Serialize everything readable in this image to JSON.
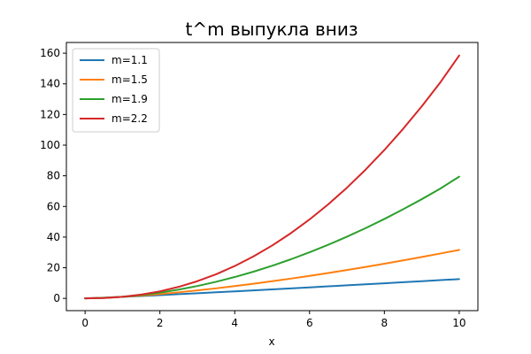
{
  "chart_data": {
    "type": "line",
    "title": "t^m выпукла вниз",
    "xlabel": "x",
    "ylabel": "",
    "xlim": [
      -0.5,
      10.5
    ],
    "ylim": [
      -8,
      167
    ],
    "x_ticks": [
      0,
      2,
      4,
      6,
      8,
      10
    ],
    "y_ticks": [
      0,
      20,
      40,
      60,
      80,
      100,
      120,
      140,
      160
    ],
    "grid": false,
    "legend_position": "top-left",
    "x": [
      0,
      0.5,
      1,
      1.5,
      2,
      2.5,
      3,
      3.5,
      4,
      4.5,
      5,
      5.5,
      6,
      6.5,
      7,
      7.5,
      8,
      8.5,
      9,
      9.5,
      10
    ],
    "series": [
      {
        "name": "m=1.1",
        "color": "#1f77b4",
        "values": [
          0,
          0.47,
          1,
          1.56,
          2.14,
          2.74,
          3.35,
          3.97,
          4.59,
          5.23,
          5.88,
          6.53,
          7.18,
          7.85,
          8.52,
          9.19,
          9.85,
          10.55,
          11.23,
          11.92,
          12.59
        ]
      },
      {
        "name": "m=1.5",
        "color": "#ff7f0e",
        "values": [
          0,
          0.35,
          1,
          1.84,
          2.83,
          3.95,
          5.2,
          6.55,
          8,
          9.55,
          11.18,
          12.9,
          14.7,
          16.57,
          18.52,
          20.54,
          22.63,
          24.78,
          27,
          29.28,
          31.62
        ]
      },
      {
        "name": "m=1.9",
        "color": "#2ca02c",
        "values": [
          0,
          0.27,
          1,
          2.16,
          3.73,
          5.7,
          8.06,
          10.81,
          13.93,
          17.42,
          21.28,
          25.5,
          30.06,
          34.98,
          40.25,
          45.86,
          51.82,
          58.11,
          64.74,
          71.71,
          79.43
        ]
      },
      {
        "name": "m=2.2",
        "color": "#d62728",
        "values": [
          0,
          0.22,
          1,
          2.44,
          4.59,
          7.51,
          11.21,
          15.74,
          21.11,
          27.35,
          34.49,
          42.54,
          51.5,
          61.4,
          72.24,
          84.05,
          96.83,
          110.59,
          125.35,
          141.11,
          158.49
        ]
      }
    ]
  }
}
